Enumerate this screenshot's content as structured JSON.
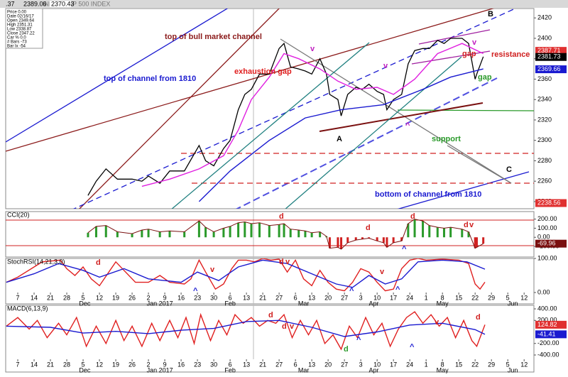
{
  "chart_data": [
    {
      "type": "line",
      "color": "#000000",
      "header": [
        "INDEX S&P 500 INDEX",
        ".37",
        "2389.06",
        "2370.43"
      ],
      "info": [
        "Price  0.00",
        "Date  02/16/17",
        "Open  2349.64",
        "High  2351.31",
        "Low  2338.87",
        "Close  2347.22",
        "Car %  0.0",
        "# Bars -73",
        "Bar Ix -54"
      ],
      "xlim": [
        -0.74,
        31.6
      ],
      "ylim": [
        2233,
        2429.2
      ],
      "yticks": [
        2240,
        2260,
        2280,
        2300,
        2320,
        2340,
        2360,
        2380,
        2400,
        2420
      ],
      "x": [
        4.3,
        4.8,
        5.4,
        6.1,
        7.0,
        7.6,
        8.0,
        8.7,
        9.3,
        10.2,
        11.1,
        11.5,
        12.0,
        12.6,
        13.0,
        13.5,
        13.9,
        14.3,
        14.8,
        15.4,
        16.0,
        16.3,
        16.7,
        17.2,
        17.6,
        18.0,
        18.5,
        18.9,
        19.1,
        19.6,
        19.8,
        20.2,
        20.7,
        21.1,
        21.5,
        22.0,
        22.4,
        22.6,
        23.0,
        23.5,
        23.9,
        24.3,
        24.8,
        25.2,
        25.7,
        26.1,
        26.5,
        27.2,
        27.6,
        28.0,
        28.1,
        28.5
      ],
      "values": [
        2246,
        2260,
        2272,
        2262,
        2262,
        2260,
        2265,
        2258,
        2270,
        2270,
        2295,
        2280,
        2275,
        2292,
        2300,
        2330,
        2345,
        2350,
        2365,
        2365,
        2390,
        2395,
        2372,
        2370,
        2368,
        2365,
        2380,
        2365,
        2345,
        2340,
        2324,
        2345,
        2352,
        2350,
        2355,
        2348,
        2345,
        2330,
        2340,
        2345,
        2375,
        2388,
        2390,
        2390,
        2398,
        2395,
        2400,
        2400,
        2395,
        2360,
        2365,
        2382
      ],
      "series": [
        {
          "color": "#e020e0",
          "x": [
            7.6,
            9.3,
            11.1,
            12.6,
            13.5,
            14.3,
            15.4,
            16.3,
            17.2,
            18.5,
            19.6,
            20.7,
            22.0,
            23.0,
            24.3,
            25.7,
            27.2,
            28.5
          ],
          "values": [
            2255,
            2262,
            2272,
            2285,
            2310,
            2340,
            2362,
            2385,
            2380,
            2370,
            2358,
            2350,
            2352,
            2345,
            2360,
            2385,
            2395,
            2385
          ]
        },
        {
          "color": "#1a1ad0",
          "x": [
            11.1,
            13.0,
            15.4,
            17.6,
            19.8,
            22.4,
            24.8,
            26.5,
            28.5
          ],
          "values": [
            2240,
            2270,
            2300,
            2322,
            2330,
            2335,
            2350,
            2362,
            2370
          ]
        }
      ],
      "readouts": [
        {
          "value": 2387.71,
          "color": "#e03030"
        },
        {
          "value": 2381.73,
          "color": "#000000"
        },
        {
          "value": 2369.66,
          "color": "#1a1ad0"
        },
        {
          "value": 2238.56,
          "color": "#e03030"
        }
      ],
      "annotations": [
        "top of bull market channel",
        "top of channel from 1810",
        "exhaustion gap",
        "resistance",
        "gap",
        "gap",
        "support",
        "bottom of channel from 1810",
        "A",
        "B",
        "C",
        "v",
        "v",
        "v",
        "^"
      ]
    },
    {
      "type": "bar",
      "title": "CCI(20)",
      "colors": {
        "up": "#2a9a2a",
        "down": "#d02020"
      },
      "xlim": [
        -0.74,
        31.6
      ],
      "ylim": [
        -217,
        283
      ],
      "yticks": [
        {
          "value": 200,
          "label": "200.00"
        },
        {
          "value": 100,
          "label": "100.00"
        },
        {
          "value": 0,
          "label": "0.00"
        },
        {
          "value": -100,
          "label": "-100.00"
        }
      ],
      "x": [
        4.3,
        4.8,
        5.4,
        6.1,
        7.0,
        7.6,
        8.0,
        8.7,
        9.3,
        10.2,
        11.1,
        11.5,
        12.0,
        12.6,
        13.0,
        13.5,
        13.9,
        14.3,
        14.8,
        15.4,
        16.0,
        16.3,
        16.7,
        17.2,
        17.6,
        18.0,
        18.5,
        18.9,
        19.1,
        19.6,
        19.8,
        20.2,
        20.7,
        21.1,
        21.5,
        22.0,
        22.4,
        22.6,
        23.0,
        23.5,
        23.9,
        24.3,
        24.8,
        25.2,
        25.7,
        26.1,
        26.5,
        27.2,
        27.6,
        28.0,
        28.1,
        28.5
      ],
      "values": [
        50,
        120,
        130,
        60,
        40,
        80,
        90,
        60,
        70,
        60,
        180,
        110,
        60,
        100,
        120,
        160,
        170,
        150,
        160,
        130,
        140,
        150,
        90,
        80,
        70,
        50,
        60,
        10,
        -120,
        -110,
        -130,
        -60,
        -30,
        -20,
        -10,
        -40,
        -60,
        -110,
        -60,
        -40,
        150,
        200,
        180,
        130,
        110,
        100,
        110,
        90,
        60,
        -120,
        -110,
        -70
      ],
      "readouts": [
        {
          "value": -69.96,
          "color": "#7a1010"
        }
      ],
      "annotations": [
        "d",
        "d",
        "d",
        "d",
        "v",
        "^"
      ]
    },
    {
      "type": "line",
      "title": "StochRSI(14,21,3,0)",
      "xlim": [
        -0.74,
        31.6
      ],
      "ylim": [
        0,
        100
      ],
      "yticks": [
        {
          "value": 100,
          "label": "100.00"
        },
        {
          "value": 0,
          "label": "0.00"
        }
      ],
      "xticks": [
        "7",
        "14",
        "21",
        "28",
        "5",
        "12",
        "19",
        "26",
        "2",
        "9",
        "16",
        "23",
        "30",
        "6",
        "13",
        "21",
        "27",
        "6",
        "13",
        "20",
        "27",
        "3",
        "10",
        "17",
        "24",
        "1",
        "8",
        "15",
        "22",
        "29",
        "5",
        "12"
      ],
      "months": [
        {
          "value": 4.1,
          "label": "Dec"
        },
        {
          "value": 8.7,
          "label": "Jan 2017"
        },
        {
          "value": 13.0,
          "label": "Feb"
        },
        {
          "value": 17.5,
          "label": "Mar"
        },
        {
          "value": 21.8,
          "label": "Apr"
        },
        {
          "value": 26.0,
          "label": "May"
        },
        {
          "value": 30.3,
          "label": "Jun"
        }
      ],
      "series": [
        {
          "color": "#e02020",
          "x": [
            -0.7,
            0,
            1,
            1.5,
            2.6,
            3.0,
            3.5,
            4.0,
            4.5,
            5.0,
            5.5,
            6.0,
            6.5,
            7.2,
            8,
            8.7,
            9.3,
            10.2,
            10.6,
            11.1,
            11.5,
            12.1,
            12.6,
            13.1,
            13.5,
            14,
            14.5,
            15,
            15.5,
            16,
            16.5,
            17,
            17.5,
            18,
            18.5,
            19,
            19.5,
            20,
            20.5,
            21,
            21.5,
            22,
            22.5,
            23,
            23.5,
            24,
            24.5,
            25,
            26,
            27,
            27.6,
            28,
            28.3,
            28.6
          ],
          "values": [
            30,
            45,
            75,
            90,
            95,
            70,
            50,
            75,
            40,
            20,
            55,
            90,
            65,
            30,
            30,
            50,
            30,
            25,
            40,
            95,
            60,
            10,
            25,
            70,
            95,
            95,
            90,
            100,
            95,
            98,
            60,
            95,
            40,
            20,
            65,
            30,
            10,
            5,
            30,
            70,
            60,
            30,
            5,
            10,
            70,
            95,
            100,
            95,
            98,
            95,
            85,
            25,
            10,
            30.48
          ]
        },
        {
          "color": "#1a1ad0",
          "x": [
            -0.7,
            1,
            2.5,
            4,
            5,
            6.5,
            8,
            10,
            11,
            12.3,
            13.5,
            15,
            16.5,
            18,
            19.5,
            20.5,
            21.5,
            22.5,
            23.5,
            24.5,
            26,
            27.5,
            28.6
          ],
          "values": [
            30,
            55,
            85,
            65,
            45,
            70,
            40,
            30,
            60,
            35,
            75,
            95,
            85,
            55,
            25,
            15,
            50,
            25,
            40,
            90,
            95,
            90,
            68.55
          ]
        }
      ],
      "annotations": [
        "d",
        "v",
        "d",
        "v",
        "v",
        "^",
        "^",
        "^"
      ]
    },
    {
      "type": "line",
      "title": "MACD(6,13,9)",
      "xlim": [
        -0.74,
        31.6
      ],
      "ylim": [
        -474,
        462
      ],
      "yticks": [
        {
          "value": 400,
          "label": "400.00"
        },
        {
          "value": 200,
          "label": "200.00"
        },
        {
          "value": -200,
          "label": "-200.00"
        },
        {
          "value": -400,
          "label": "-400.00"
        }
      ],
      "xticks": [
        "7",
        "14",
        "21",
        "28",
        "5",
        "12",
        "19",
        "26",
        "2",
        "9",
        "16",
        "23",
        "30",
        "6",
        "13",
        "21",
        "27",
        "6",
        "13",
        "20",
        "27",
        "3",
        "10",
        "17",
        "24",
        "1",
        "8",
        "15",
        "22",
        "29",
        "5",
        "12"
      ],
      "months": [
        {
          "value": 4.1,
          "label": "Dec"
        },
        {
          "value": 8.7,
          "label": "Jan 2017"
        },
        {
          "value": 13.0,
          "label": "Feb"
        },
        {
          "value": 17.5,
          "label": "Mar"
        },
        {
          "value": 21.8,
          "label": "Apr"
        },
        {
          "value": 26.0,
          "label": "May"
        },
        {
          "value": 30.3,
          "label": "Jun"
        }
      ],
      "series": [
        {
          "color": "#e02020",
          "x": [
            -0.7,
            0,
            0.7,
            1.2,
            1.8,
            2.5,
            3,
            3.6,
            4.2,
            4.8,
            5.4,
            6,
            6.5,
            7,
            7.6,
            8.2,
            8.7,
            9.3,
            9.8,
            10.3,
            10.8,
            11.2,
            11.8,
            12.3,
            12.8,
            13.3,
            13.8,
            14.3,
            14.8,
            15.3,
            15.8,
            16.3,
            16.8,
            17.3,
            17.8,
            18.3,
            18.8,
            19.3,
            19.8,
            20.3,
            20.8,
            21.3,
            21.8,
            22.3,
            22.8,
            23.3,
            23.8,
            24.3,
            24.8,
            25.3,
            25.8,
            26.3,
            26.8,
            27.3,
            27.8,
            28.1,
            28.6
          ],
          "values": [
            100,
            250,
            50,
            200,
            -100,
            150,
            -50,
            250,
            -250,
            100,
            -200,
            200,
            -150,
            100,
            -250,
            150,
            -150,
            200,
            -100,
            250,
            -200,
            300,
            -150,
            200,
            -50,
            300,
            150,
            250,
            100,
            200,
            150,
            300,
            -100,
            200,
            -50,
            200,
            -200,
            -50,
            -300,
            100,
            -100,
            250,
            -50,
            150,
            -250,
            50,
            250,
            350,
            150,
            300,
            100,
            250,
            -100,
            200,
            -150,
            -250,
            124.82
          ]
        },
        {
          "color": "#1a1ad0",
          "x": [
            -0.7,
            2,
            4,
            6,
            8,
            10,
            12,
            14,
            16,
            18,
            20,
            22,
            24,
            26,
            28,
            28.6
          ],
          "values": [
            100,
            80,
            -20,
            10,
            -30,
            30,
            60,
            180,
            200,
            80,
            -80,
            0,
            120,
            150,
            40,
            -41.41
          ]
        }
      ],
      "readouts": [
        {
          "value": 124.82,
          "color": "#e03030"
        },
        {
          "value": -41.41,
          "color": "#1a1ad0"
        }
      ],
      "annotations": [
        "d",
        "d",
        "v",
        "d",
        "^",
        "^",
        "v",
        "d"
      ]
    }
  ]
}
